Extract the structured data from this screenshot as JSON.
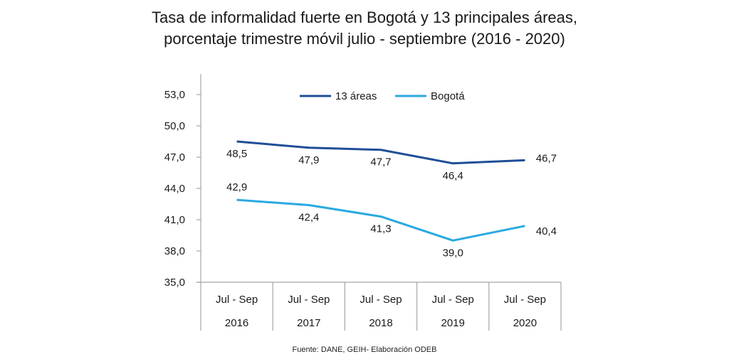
{
  "chart_data": {
    "type": "line",
    "title": "Tasa de informalidad fuerte en Bogotá y 13 principales áreas,",
    "subtitle": "porcentaje trimestre móvil julio - septiembre (2016 - 2020)",
    "categories": [
      {
        "period": "Jul - Sep",
        "year": "2016"
      },
      {
        "period": "Jul - Sep",
        "year": "2017"
      },
      {
        "period": "Jul - Sep",
        "year": "2018"
      },
      {
        "period": "Jul - Sep",
        "year": "2019"
      },
      {
        "period": "Jul - Sep",
        "year": "2020"
      }
    ],
    "series": [
      {
        "name": "13 áreas",
        "color": "#1f4e97",
        "values": [
          48.5,
          47.9,
          47.7,
          46.4,
          46.7
        ],
        "labels": [
          "48,5",
          "47,9",
          "47,7",
          "46,4",
          "46,7"
        ]
      },
      {
        "name": "Bogotá",
        "color": "#2aa9e0",
        "values": [
          42.9,
          42.4,
          41.3,
          39.0,
          40.4
        ],
        "labels": [
          "42,9",
          "42,4",
          "41,3",
          "39,0",
          "40,4"
        ]
      }
    ],
    "ylim": [
      35,
      53
    ],
    "yticks": [
      35,
      38,
      41,
      44,
      47,
      50,
      53
    ],
    "ytick_labels": [
      "35,0",
      "38,0",
      "41,0",
      "44,0",
      "47,0",
      "50,0",
      "53,0"
    ],
    "xlabel": "",
    "ylabel": "",
    "grid": false,
    "legend": "top-center",
    "source": "Fuente: DANE, GEIH- Elaboración ODEB"
  }
}
